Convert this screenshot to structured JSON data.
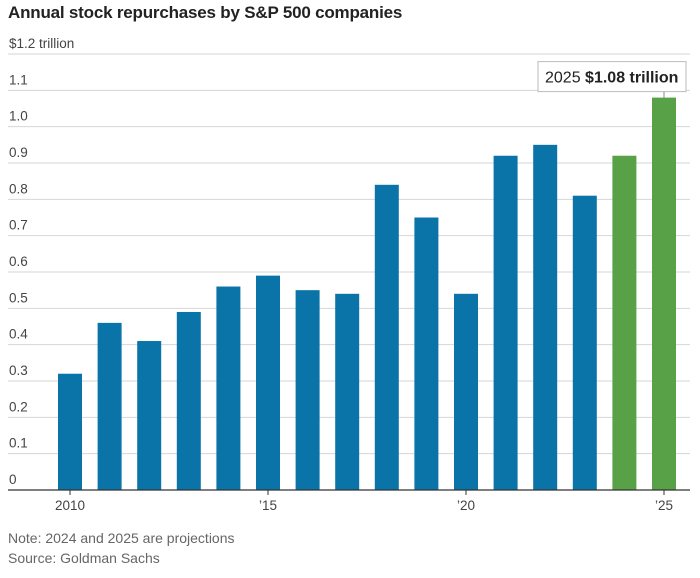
{
  "title": "Annual stock repurchases by S&P 500 companies",
  "note": "Note: 2024 and 2025 are projections",
  "source": "Source: Goldman Sachs",
  "colors": {
    "actual": "#0a74a8",
    "projection": "#58a147",
    "grid": "#d6d6d6",
    "axis": "#333333"
  },
  "chart_data": {
    "type": "bar",
    "title": "Annual stock repurchases by S&P 500 companies",
    "ylabel": "",
    "xlabel": "",
    "ylim": [
      0,
      1.2
    ],
    "grid": true,
    "years": [
      2010,
      2011,
      2012,
      2013,
      2014,
      2015,
      2016,
      2017,
      2018,
      2019,
      2020,
      2021,
      2022,
      2023,
      2024,
      2025
    ],
    "values": [
      0.32,
      0.46,
      0.41,
      0.49,
      0.56,
      0.59,
      0.55,
      0.54,
      0.84,
      0.75,
      0.54,
      0.92,
      0.95,
      0.81,
      0.92,
      1.08
    ],
    "projection": [
      false,
      false,
      false,
      false,
      false,
      false,
      false,
      false,
      false,
      false,
      false,
      false,
      false,
      false,
      true,
      true
    ],
    "y_ticks": [
      {
        "value": 1.2,
        "label": "$1.2 trillion"
      },
      {
        "value": 1.1,
        "label": "1.1"
      },
      {
        "value": 1.0,
        "label": "1.0"
      },
      {
        "value": 0.9,
        "label": "0.9"
      },
      {
        "value": 0.8,
        "label": "0.8"
      },
      {
        "value": 0.7,
        "label": "0.7"
      },
      {
        "value": 0.6,
        "label": "0.6"
      },
      {
        "value": 0.5,
        "label": "0.5"
      },
      {
        "value": 0.4,
        "label": "0.4"
      },
      {
        "value": 0.3,
        "label": "0.3"
      },
      {
        "value": 0.2,
        "label": "0.2"
      },
      {
        "value": 0.1,
        "label": "0.1"
      },
      {
        "value": 0,
        "label": "0"
      }
    ],
    "x_ticks": [
      {
        "year": 2010,
        "label": "2010"
      },
      {
        "year": 2015,
        "label": "’15"
      },
      {
        "year": 2020,
        "label": "’20"
      },
      {
        "year": 2025,
        "label": "’25"
      }
    ],
    "annotation": {
      "year": 2025,
      "prefix": "2025",
      "value_text": "$1.08 trillion"
    }
  }
}
